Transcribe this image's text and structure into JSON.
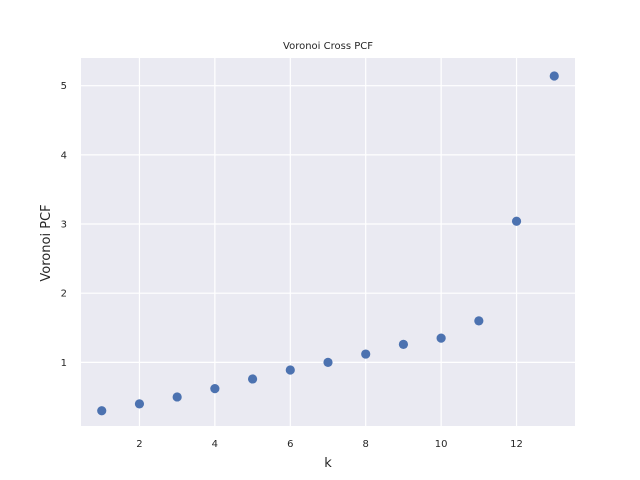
{
  "chart_data": {
    "type": "scatter",
    "title": "Voronoi Cross PCF",
    "xlabel": "k",
    "ylabel": "Voronoi PCF",
    "xlim": [
      0.45,
      13.55
    ],
    "ylim": [
      0.08,
      5.4
    ],
    "xticks": [
      2,
      4,
      6,
      8,
      10,
      12
    ],
    "yticks": [
      1,
      2,
      3,
      4,
      5
    ],
    "grid": true,
    "colors": {
      "background": "#eaeaf2",
      "grid": "#ffffff",
      "marker": "#4c72b0"
    },
    "series": [
      {
        "x": [
          1,
          2,
          3,
          4,
          5,
          6,
          7,
          8,
          9,
          10,
          11,
          12,
          13
        ],
        "y": [
          0.3,
          0.4,
          0.5,
          0.62,
          0.76,
          0.89,
          1.0,
          1.12,
          1.26,
          1.35,
          1.6,
          3.04,
          5.14
        ]
      }
    ]
  }
}
